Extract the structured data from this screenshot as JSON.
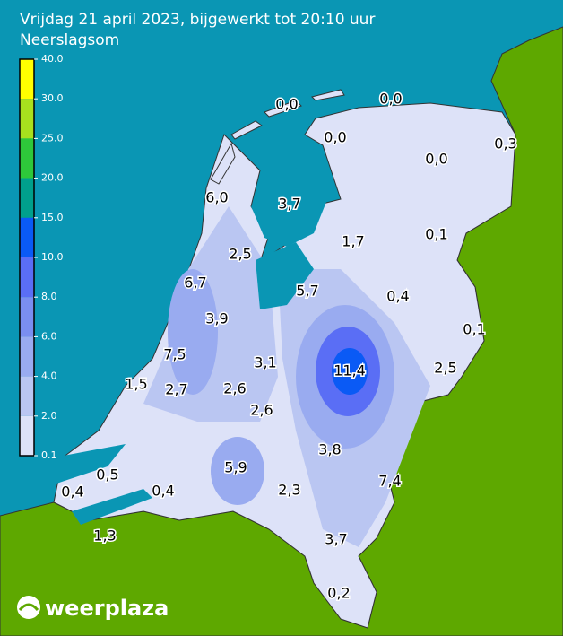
{
  "header": {
    "title": "Vrijdag 21 april 2023, bijgewerkt tot 20:10 uur",
    "subtitle": "Neerslagsom"
  },
  "legend": {
    "ticks": [
      "40.0",
      "30.0",
      "25.0",
      "20.0",
      "15.0",
      "10.0",
      "8.0",
      "6.0",
      "4.0",
      "2.0",
      "0.1"
    ],
    "colors": [
      "#ffff00",
      "#a8e01e",
      "#2ec83a",
      "#00a08c",
      "#0a5af5",
      "#5a6ef5",
      "#7a8ef0",
      "#99abf0",
      "#bac6f2",
      "#dde2f8"
    ]
  },
  "map": {
    "labels": [
      "0,0",
      "0,0",
      "0,0",
      "0,3",
      "0,0",
      "6,0",
      "3,7",
      "0,1",
      "1,7",
      "2,5",
      "6,7",
      "5,7",
      "0,4",
      "3,9",
      "0,1",
      "7,5",
      "3,1",
      "11,4",
      "2,5",
      "1,5",
      "2,7",
      "2,6",
      "2,6",
      "3,8",
      "0,5",
      "5,9",
      "7,4",
      "0,4",
      "0,4",
      "2,3",
      "1,3",
      "3,7",
      "0,2"
    ]
  },
  "logo": {
    "text": "weerplaza"
  }
}
